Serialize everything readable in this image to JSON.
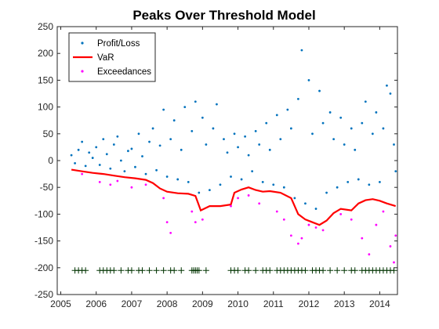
{
  "chart_data": {
    "type": "scatter",
    "title": "Peaks Over Threshold Model",
    "xlabel": "",
    "ylabel": "",
    "xlim": [
      2004.9,
      2014.5
    ],
    "ylim": [
      -250,
      250
    ],
    "x_ticks": [
      2005,
      2006,
      2007,
      2008,
      2009,
      2010,
      2011,
      2012,
      2013,
      2014
    ],
    "x_tick_labels": [
      "2005",
      "2006",
      "2007",
      "2008",
      "2009",
      "2010",
      "2011",
      "2012",
      "2013",
      "2014"
    ],
    "y_ticks": [
      -250,
      -200,
      -150,
      -100,
      -50,
      0,
      50,
      100,
      150,
      200,
      250
    ],
    "y_tick_labels": [
      "-250",
      "-200",
      "-150",
      "-100",
      "-50",
      "0",
      "50",
      "100",
      "150",
      "200",
      "250"
    ],
    "grid": false,
    "legend_position": "top-left",
    "series": [
      {
        "name": "Profit/Loss",
        "marker": "dot",
        "color": "#0072BD",
        "points": [
          [
            2005.3,
            10
          ],
          [
            2005.4,
            -5
          ],
          [
            2005.5,
            20
          ],
          [
            2005.6,
            35
          ],
          [
            2005.7,
            -10
          ],
          [
            2005.8,
            15
          ],
          [
            2005.9,
            5
          ],
          [
            2006.0,
            25
          ],
          [
            2006.1,
            -8
          ],
          [
            2006.2,
            40
          ],
          [
            2006.3,
            12
          ],
          [
            2006.4,
            -15
          ],
          [
            2006.5,
            30
          ],
          [
            2006.6,
            45
          ],
          [
            2006.7,
            0
          ],
          [
            2006.8,
            -20
          ],
          [
            2006.9,
            18
          ],
          [
            2007.0,
            22
          ],
          [
            2007.1,
            -12
          ],
          [
            2007.2,
            50
          ],
          [
            2007.3,
            8
          ],
          [
            2007.4,
            -25
          ],
          [
            2007.5,
            35
          ],
          [
            2007.6,
            60
          ],
          [
            2007.7,
            -18
          ],
          [
            2007.8,
            28
          ],
          [
            2007.9,
            95
          ],
          [
            2008.0,
            -30
          ],
          [
            2008.1,
            40
          ],
          [
            2008.2,
            75
          ],
          [
            2008.3,
            -35
          ],
          [
            2008.4,
            20
          ],
          [
            2008.5,
            100
          ],
          [
            2008.6,
            -40
          ],
          [
            2008.7,
            55
          ],
          [
            2008.8,
            110
          ],
          [
            2008.9,
            -60
          ],
          [
            2009.0,
            80
          ],
          [
            2009.1,
            30
          ],
          [
            2009.2,
            -55
          ],
          [
            2009.3,
            60
          ],
          [
            2009.4,
            105
          ],
          [
            2009.5,
            -45
          ],
          [
            2009.6,
            40
          ],
          [
            2009.7,
            15
          ],
          [
            2009.8,
            -30
          ],
          [
            2009.9,
            50
          ],
          [
            2010.0,
            25
          ],
          [
            2010.1,
            -35
          ],
          [
            2010.2,
            45
          ],
          [
            2010.3,
            10
          ],
          [
            2010.4,
            -20
          ],
          [
            2010.5,
            55
          ],
          [
            2010.6,
            30
          ],
          [
            2010.7,
            -40
          ],
          [
            2010.8,
            70
          ],
          [
            2010.9,
            20
          ],
          [
            2011.0,
            -45
          ],
          [
            2011.1,
            85
          ],
          [
            2011.2,
            40
          ],
          [
            2011.3,
            -50
          ],
          [
            2011.4,
            95
          ],
          [
            2011.5,
            60
          ],
          [
            2011.6,
            -70
          ],
          [
            2011.7,
            115
          ],
          [
            2011.8,
            206
          ],
          [
            2011.9,
            -80
          ],
          [
            2012.0,
            150
          ],
          [
            2012.1,
            50
          ],
          [
            2012.2,
            -90
          ],
          [
            2012.3,
            130
          ],
          [
            2012.4,
            70
          ],
          [
            2012.5,
            -60
          ],
          [
            2012.6,
            90
          ],
          [
            2012.7,
            40
          ],
          [
            2012.8,
            -50
          ],
          [
            2012.9,
            80
          ],
          [
            2013.0,
            30
          ],
          [
            2013.1,
            -40
          ],
          [
            2013.2,
            60
          ],
          [
            2013.3,
            20
          ],
          [
            2013.4,
            -35
          ],
          [
            2013.5,
            70
          ],
          [
            2013.6,
            110
          ],
          [
            2013.7,
            -45
          ],
          [
            2013.8,
            50
          ],
          [
            2013.9,
            90
          ],
          [
            2014.0,
            -40
          ],
          [
            2014.1,
            60
          ],
          [
            2014.2,
            140
          ],
          [
            2014.3,
            125
          ],
          [
            2014.4,
            30
          ],
          [
            2014.45,
            -20
          ]
        ]
      },
      {
        "name": "VaR",
        "marker": "line",
        "color": "#FF0000",
        "points": [
          [
            2005.3,
            -17
          ],
          [
            2005.6,
            -20
          ],
          [
            2005.9,
            -23
          ],
          [
            2006.2,
            -25
          ],
          [
            2006.5,
            -28
          ],
          [
            2006.8,
            -31
          ],
          [
            2007.1,
            -33
          ],
          [
            2007.4,
            -36
          ],
          [
            2007.6,
            -42
          ],
          [
            2007.8,
            -52
          ],
          [
            2008.0,
            -58
          ],
          [
            2008.3,
            -61
          ],
          [
            2008.6,
            -62
          ],
          [
            2008.8,
            -66
          ],
          [
            2008.95,
            -93
          ],
          [
            2009.2,
            -85
          ],
          [
            2009.5,
            -85
          ],
          [
            2009.8,
            -82
          ],
          [
            2009.9,
            -60
          ],
          [
            2010.1,
            -54
          ],
          [
            2010.3,
            -50
          ],
          [
            2010.5,
            -55
          ],
          [
            2010.7,
            -58
          ],
          [
            2010.9,
            -57
          ],
          [
            2011.2,
            -60
          ],
          [
            2011.5,
            -70
          ],
          [
            2011.7,
            -100
          ],
          [
            2011.9,
            -110
          ],
          [
            2012.1,
            -115
          ],
          [
            2012.3,
            -120
          ],
          [
            2012.5,
            -112
          ],
          [
            2012.7,
            -98
          ],
          [
            2012.9,
            -90
          ],
          [
            2013.2,
            -93
          ],
          [
            2013.4,
            -80
          ],
          [
            2013.6,
            -74
          ],
          [
            2013.8,
            -72
          ],
          [
            2014.0,
            -75
          ],
          [
            2014.2,
            -80
          ],
          [
            2014.45,
            -85
          ]
        ]
      },
      {
        "name": "Exceedances",
        "marker": "dot",
        "color": "#FF00FF",
        "points": [
          [
            2005.6,
            -25
          ],
          [
            2006.1,
            -40
          ],
          [
            2006.4,
            -45
          ],
          [
            2006.6,
            -38
          ],
          [
            2007.0,
            -50
          ],
          [
            2007.4,
            -45
          ],
          [
            2007.9,
            -70
          ],
          [
            2008.0,
            -115
          ],
          [
            2008.1,
            -135
          ],
          [
            2008.7,
            -95
          ],
          [
            2008.8,
            -115
          ],
          [
            2009.0,
            -110
          ],
          [
            2009.8,
            -85
          ],
          [
            2010.0,
            -70
          ],
          [
            2010.3,
            -65
          ],
          [
            2010.6,
            -80
          ],
          [
            2011.1,
            -95
          ],
          [
            2011.3,
            -110
          ],
          [
            2011.5,
            -140
          ],
          [
            2011.7,
            -155
          ],
          [
            2011.8,
            -145
          ],
          [
            2012.0,
            -120
          ],
          [
            2012.2,
            -125
          ],
          [
            2012.4,
            -130
          ],
          [
            2012.9,
            -100
          ],
          [
            2013.2,
            -110
          ],
          [
            2013.5,
            -145
          ],
          [
            2013.7,
            -175
          ],
          [
            2013.9,
            -120
          ],
          [
            2014.1,
            -95
          ],
          [
            2014.3,
            -160
          ],
          [
            2014.4,
            -190
          ],
          [
            2014.45,
            -140
          ]
        ]
      },
      {
        "name": "",
        "marker": "plus",
        "color": "#003300",
        "y_level": -205,
        "x": [
          2005.4,
          2005.5,
          2005.6,
          2005.7,
          2006.1,
          2006.2,
          2006.3,
          2006.4,
          2006.5,
          2006.7,
          2006.9,
          2007.0,
          2007.2,
          2007.3,
          2007.5,
          2007.7,
          2007.9,
          2008.1,
          2008.2,
          2008.4,
          2008.7,
          2008.75,
          2008.8,
          2008.85,
          2008.9,
          2009.1,
          2009.8,
          2009.9,
          2010.0,
          2010.2,
          2010.3,
          2010.5,
          2010.7,
          2010.8,
          2010.9,
          2011.1,
          2011.2,
          2011.3,
          2011.4,
          2011.5,
          2011.6,
          2011.7,
          2011.8,
          2011.9,
          2012.1,
          2012.2,
          2012.3,
          2012.4,
          2012.6,
          2012.8,
          2013.0,
          2013.2,
          2013.3,
          2013.5,
          2013.6,
          2013.7,
          2013.8,
          2013.9,
          2014.0,
          2014.1,
          2014.2,
          2014.3,
          2014.4
        ]
      }
    ]
  }
}
